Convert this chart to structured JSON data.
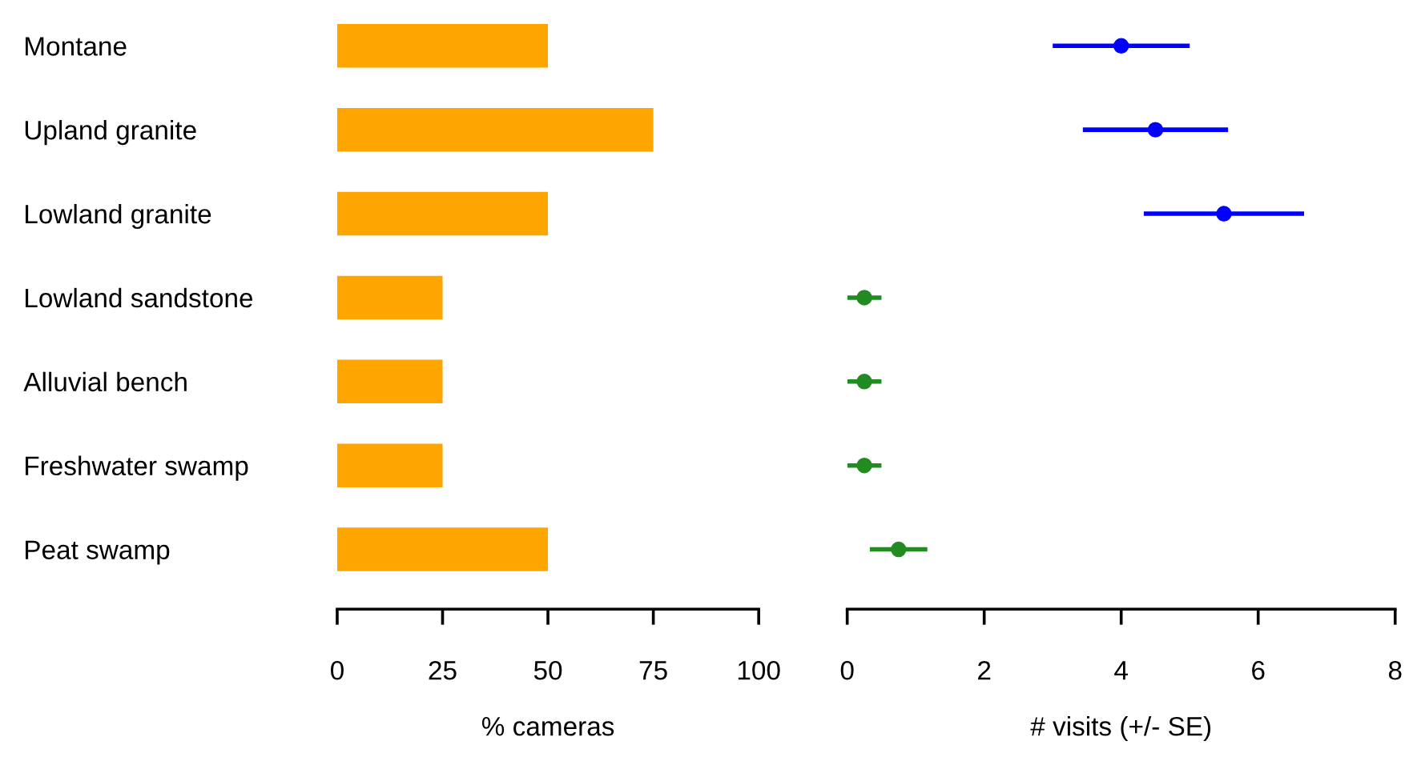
{
  "chart_data": [
    {
      "type": "bar",
      "orientation": "horizontal",
      "xlabel": "% cameras",
      "categories": [
        "Montane",
        "Upland granite",
        "Lowland granite",
        "Lowland sandstone",
        "Alluvial bench",
        "Freshwater swamp",
        "Peat swamp"
      ],
      "series": [
        {
          "color": "#ffa500",
          "values": [
            50,
            75,
            50,
            25,
            25,
            25,
            50
          ]
        }
      ],
      "xlim": [
        0,
        100
      ],
      "xticks": [
        0,
        25,
        50,
        75,
        100
      ],
      "grid": false,
      "legend": false
    },
    {
      "type": "scatter",
      "orientation": "horizontal",
      "xlabel": "# visits (+/- SE)",
      "categories": [
        null,
        null,
        null,
        null,
        null,
        null,
        null
      ],
      "series": [
        {
          "colors": [
            "#0000ff",
            "#0000ff",
            "#0000ff",
            "#228b22",
            "#228b22",
            "#228b22",
            "#228b22"
          ],
          "values": [
            4.0,
            4.5,
            5.5,
            0.25,
            0.25,
            0.25,
            0.75
          ],
          "errors": [
            [
              3.0,
              5.0
            ],
            [
              3.44,
              5.56
            ],
            [
              4.33,
              6.67
            ],
            [
              0.0,
              0.5
            ],
            [
              0.0,
              0.5
            ],
            [
              0.0,
              0.5
            ],
            [
              0.33,
              1.17
            ]
          ]
        }
      ],
      "xlim": [
        0,
        8
      ],
      "xticks": [
        0,
        2,
        4,
        6,
        8
      ],
      "marker": "circle",
      "tick_labels": "x",
      "grid": false,
      "legend": false
    }
  ]
}
